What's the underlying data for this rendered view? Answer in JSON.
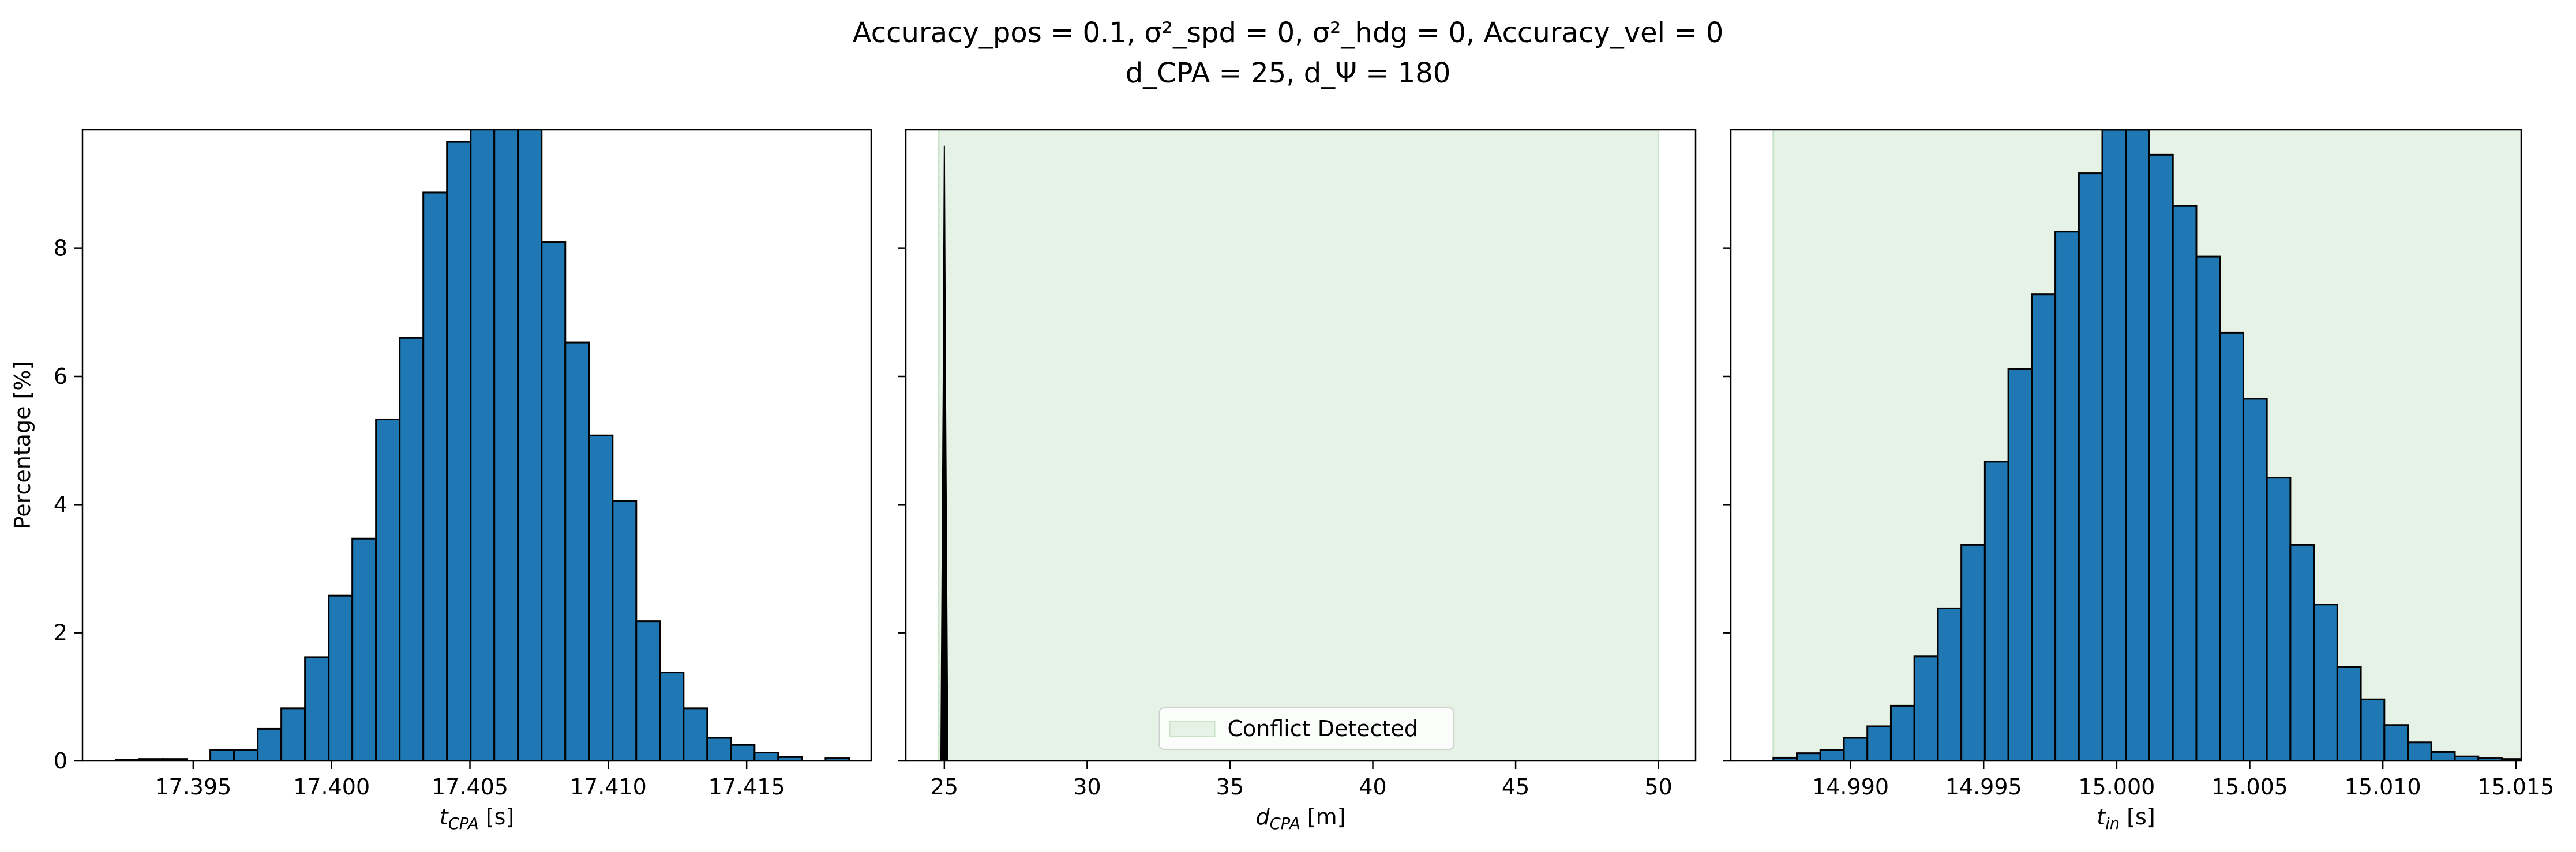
{
  "title": {
    "line1": "Accuracy_pos = 0.1, σ²_spd = 0, σ²_hdg = 0, Accuracy_vel = 0",
    "line2": "d_CPA = 25, d_Ψ = 180"
  },
  "colors": {
    "bar": "#1f77b4",
    "edge": "#000000",
    "conflict": "#e5f2e5",
    "conflict_edge": "#c8e3c8"
  },
  "chart_data": [
    {
      "type": "bar",
      "panel": "left",
      "xlabel": "t_CPA [s]",
      "ylabel": "Percentage [%]",
      "xlim": [
        17.391,
        17.4195
      ],
      "ylim": [
        0,
        9.85
      ],
      "xticks": [
        "17.395",
        "17.400",
        "17.405",
        "17.410",
        "17.415"
      ],
      "xtick_values": [
        17.395,
        17.4,
        17.405,
        17.41,
        17.415
      ],
      "yticks": [
        "0",
        "2",
        "4",
        "6",
        "8"
      ],
      "ytick_values": [
        0,
        2,
        4,
        6,
        8
      ],
      "bin_start": 17.3922,
      "bin_width": 0.000855,
      "values": [
        0.02,
        0.03,
        0.03,
        0.0,
        0.17,
        0.17,
        0.5,
        0.82,
        1.62,
        2.58,
        3.47,
        5.33,
        6.6,
        8.87,
        9.66,
        9.9,
        9.9,
        9.9,
        8.1,
        6.53,
        5.08,
        4.06,
        2.18,
        1.38,
        0.82,
        0.36,
        0.25,
        0.13,
        0.06,
        0.0,
        0.04
      ]
    },
    {
      "type": "bar",
      "panel": "middle",
      "xlabel": "d_CPA [m]",
      "ylabel": "",
      "xlim": [
        23.65,
        51.3
      ],
      "ylim": [
        0,
        9.85
      ],
      "xticks": [
        "25",
        "30",
        "35",
        "40",
        "45",
        "50"
      ],
      "xtick_values": [
        25,
        30,
        35,
        40,
        45,
        50
      ],
      "yticks": [],
      "conflict_region": [
        24.8,
        50
      ],
      "spike": {
        "center": 25.0,
        "half_width": 0.12,
        "peak": 9.6
      },
      "legend": {
        "label": "Conflict Detected",
        "position": "lower center"
      }
    },
    {
      "type": "bar",
      "panel": "right",
      "xlabel": "t_in [s]",
      "ylabel": "",
      "xlim": [
        14.9855,
        15.0152
      ],
      "ylim": [
        0,
        9.85
      ],
      "xticks": [
        "14.990",
        "14.995",
        "15.000",
        "15.005",
        "15.010",
        "15.015"
      ],
      "xtick_values": [
        14.99,
        14.995,
        15.0,
        15.005,
        15.01,
        15.015
      ],
      "yticks": [],
      "conflict_region": [
        14.9871,
        15.0175
      ],
      "bin_start": 14.9871,
      "bin_width": 0.000883,
      "values": [
        0.05,
        0.12,
        0.17,
        0.36,
        0.54,
        0.86,
        1.63,
        2.38,
        3.37,
        4.67,
        6.12,
        7.28,
        8.26,
        9.17,
        9.85,
        9.85,
        9.46,
        8.66,
        7.87,
        6.68,
        5.65,
        4.42,
        3.37,
        2.44,
        1.47,
        0.96,
        0.56,
        0.29,
        0.14,
        0.07,
        0.04,
        0.03
      ]
    }
  ]
}
